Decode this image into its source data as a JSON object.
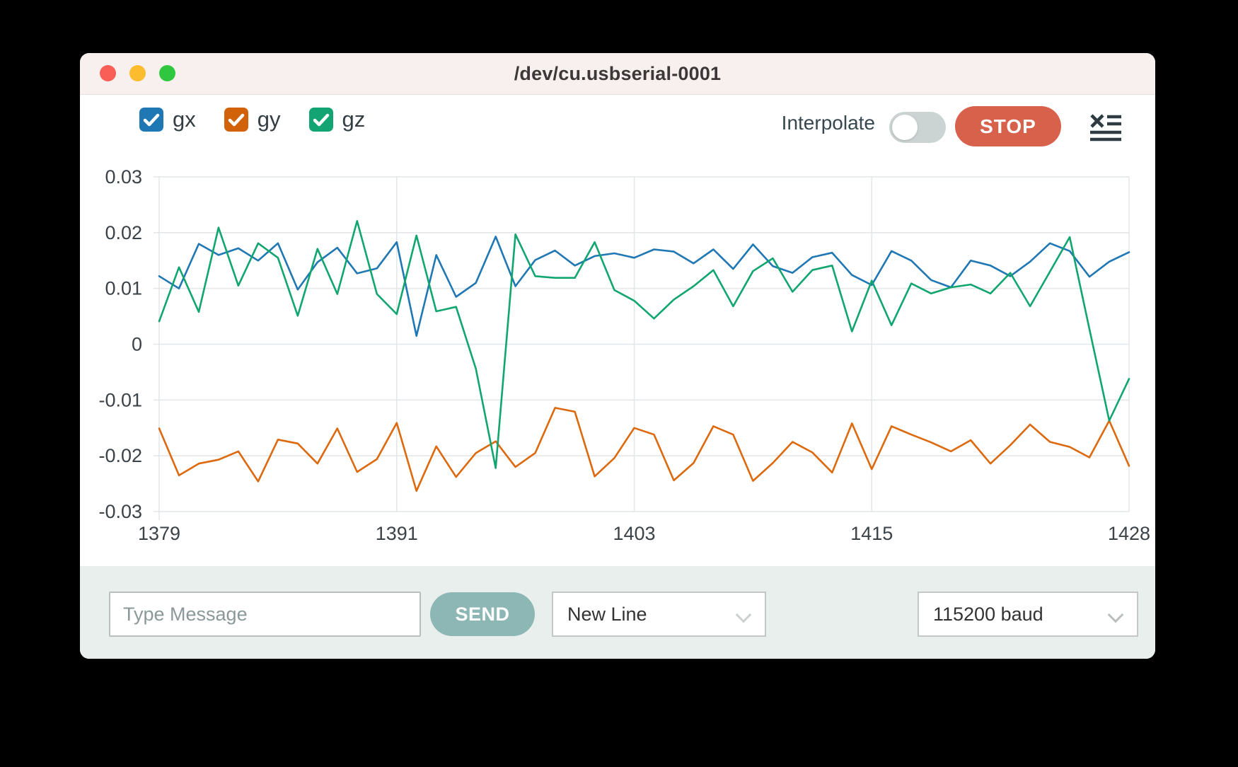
{
  "window": {
    "title": "/dev/cu.usbserial-0001"
  },
  "titlebar": {
    "buttons": [
      "close",
      "minimize",
      "zoom"
    ],
    "colors": {
      "close": "#f95f57",
      "minimize": "#fbbd2e",
      "zoom": "#2ec73f"
    }
  },
  "toolbar": {
    "interpolate_label": "Interpolate",
    "interpolate_on": false,
    "stop_label": "STOP",
    "stop_color": "#d8614c",
    "menu_icon": "clear-list-icon"
  },
  "legend": [
    {
      "id": "gx",
      "label": "gx",
      "checked": true,
      "color": "#1f77b4"
    },
    {
      "id": "gy",
      "label": "gy",
      "checked": true,
      "color": "#d2620a"
    },
    {
      "id": "gz",
      "label": "gz",
      "checked": true,
      "color": "#12a472"
    }
  ],
  "chart_data": {
    "type": "line",
    "title": "",
    "xlabel": "",
    "ylabel": "",
    "grid": true,
    "legend_position": "top-left",
    "xlim": [
      1379,
      1428
    ],
    "ylim": [
      -0.03,
      0.03
    ],
    "xticks": [
      1379,
      1391,
      1403,
      1415,
      1428
    ],
    "yticks": [
      0.03,
      0.02,
      0.01,
      0,
      -0.01,
      -0.02,
      -0.03
    ],
    "grid_color": "#e4e7e9",
    "tick_label_color": "#3b4248",
    "x": [
      1379,
      1380,
      1381,
      1382,
      1383,
      1384,
      1385,
      1386,
      1387,
      1388,
      1389,
      1390,
      1391,
      1392,
      1393,
      1394,
      1395,
      1396,
      1397,
      1398,
      1399,
      1400,
      1401,
      1402,
      1403,
      1404,
      1405,
      1406,
      1407,
      1408,
      1409,
      1410,
      1411,
      1412,
      1413,
      1414,
      1415,
      1416,
      1417,
      1418,
      1419,
      1420,
      1421,
      1422,
      1423,
      1424,
      1425,
      1426,
      1427,
      1428
    ],
    "series": [
      {
        "name": "gx",
        "color": "#1f77b4",
        "values": [
          0.0122,
          0.01,
          0.018,
          0.016,
          0.0172,
          0.015,
          0.0181,
          0.0098,
          0.0147,
          0.0173,
          0.0127,
          0.0136,
          0.0183,
          0.0015,
          0.016,
          0.0085,
          0.011,
          0.0193,
          0.0104,
          0.0151,
          0.0168,
          0.0141,
          0.0158,
          0.0163,
          0.0155,
          0.017,
          0.0166,
          0.0145,
          0.017,
          0.0135,
          0.0179,
          0.014,
          0.0128,
          0.0156,
          0.0164,
          0.0124,
          0.0106,
          0.0167,
          0.015,
          0.0115,
          0.0102,
          0.015,
          0.0141,
          0.0122,
          0.0148,
          0.0181,
          0.0167,
          0.0121,
          0.0148,
          0.0165
        ]
      },
      {
        "name": "gy",
        "color": "#dd690e",
        "values": [
          -0.0151,
          -0.0235,
          -0.0214,
          -0.0207,
          -0.0192,
          -0.0246,
          -0.0171,
          -0.0178,
          -0.0214,
          -0.0151,
          -0.0229,
          -0.0206,
          -0.0141,
          -0.0263,
          -0.0183,
          -0.0238,
          -0.0195,
          -0.0174,
          -0.022,
          -0.0195,
          -0.0114,
          -0.0121,
          -0.0237,
          -0.0204,
          -0.015,
          -0.0162,
          -0.0244,
          -0.0213,
          -0.0147,
          -0.0162,
          -0.0245,
          -0.0213,
          -0.0175,
          -0.0194,
          -0.023,
          -0.0142,
          -0.0224,
          -0.0147,
          -0.0162,
          -0.0176,
          -0.0192,
          -0.0172,
          -0.0214,
          -0.0181,
          -0.0144,
          -0.0175,
          -0.0184,
          -0.0203,
          -0.0137,
          -0.0218
        ]
      },
      {
        "name": "gz",
        "color": "#11a56f",
        "values": [
          0.0041,
          0.0138,
          0.0058,
          0.0209,
          0.0105,
          0.0181,
          0.0155,
          0.0051,
          0.0171,
          0.009,
          0.0221,
          0.009,
          0.0054,
          0.0195,
          0.0059,
          0.0067,
          -0.0044,
          -0.0222,
          0.0197,
          0.0122,
          0.0119,
          0.0119,
          0.0183,
          0.0097,
          0.0078,
          0.0046,
          0.008,
          0.0104,
          0.0133,
          0.0068,
          0.0131,
          0.0154,
          0.0094,
          0.0133,
          0.0141,
          0.0023,
          0.0114,
          0.0034,
          0.0109,
          0.0091,
          0.0102,
          0.0107,
          0.0091,
          0.0128,
          0.0068,
          0.013,
          0.0192,
          0.0027,
          -0.0137,
          -0.0062
        ]
      }
    ]
  },
  "footer": {
    "message_placeholder": "Type Message",
    "message_value": "",
    "send_label": "SEND",
    "send_color": "#8cb7b4",
    "line_ending_value": "New Line",
    "baud_value": "115200 baud"
  }
}
